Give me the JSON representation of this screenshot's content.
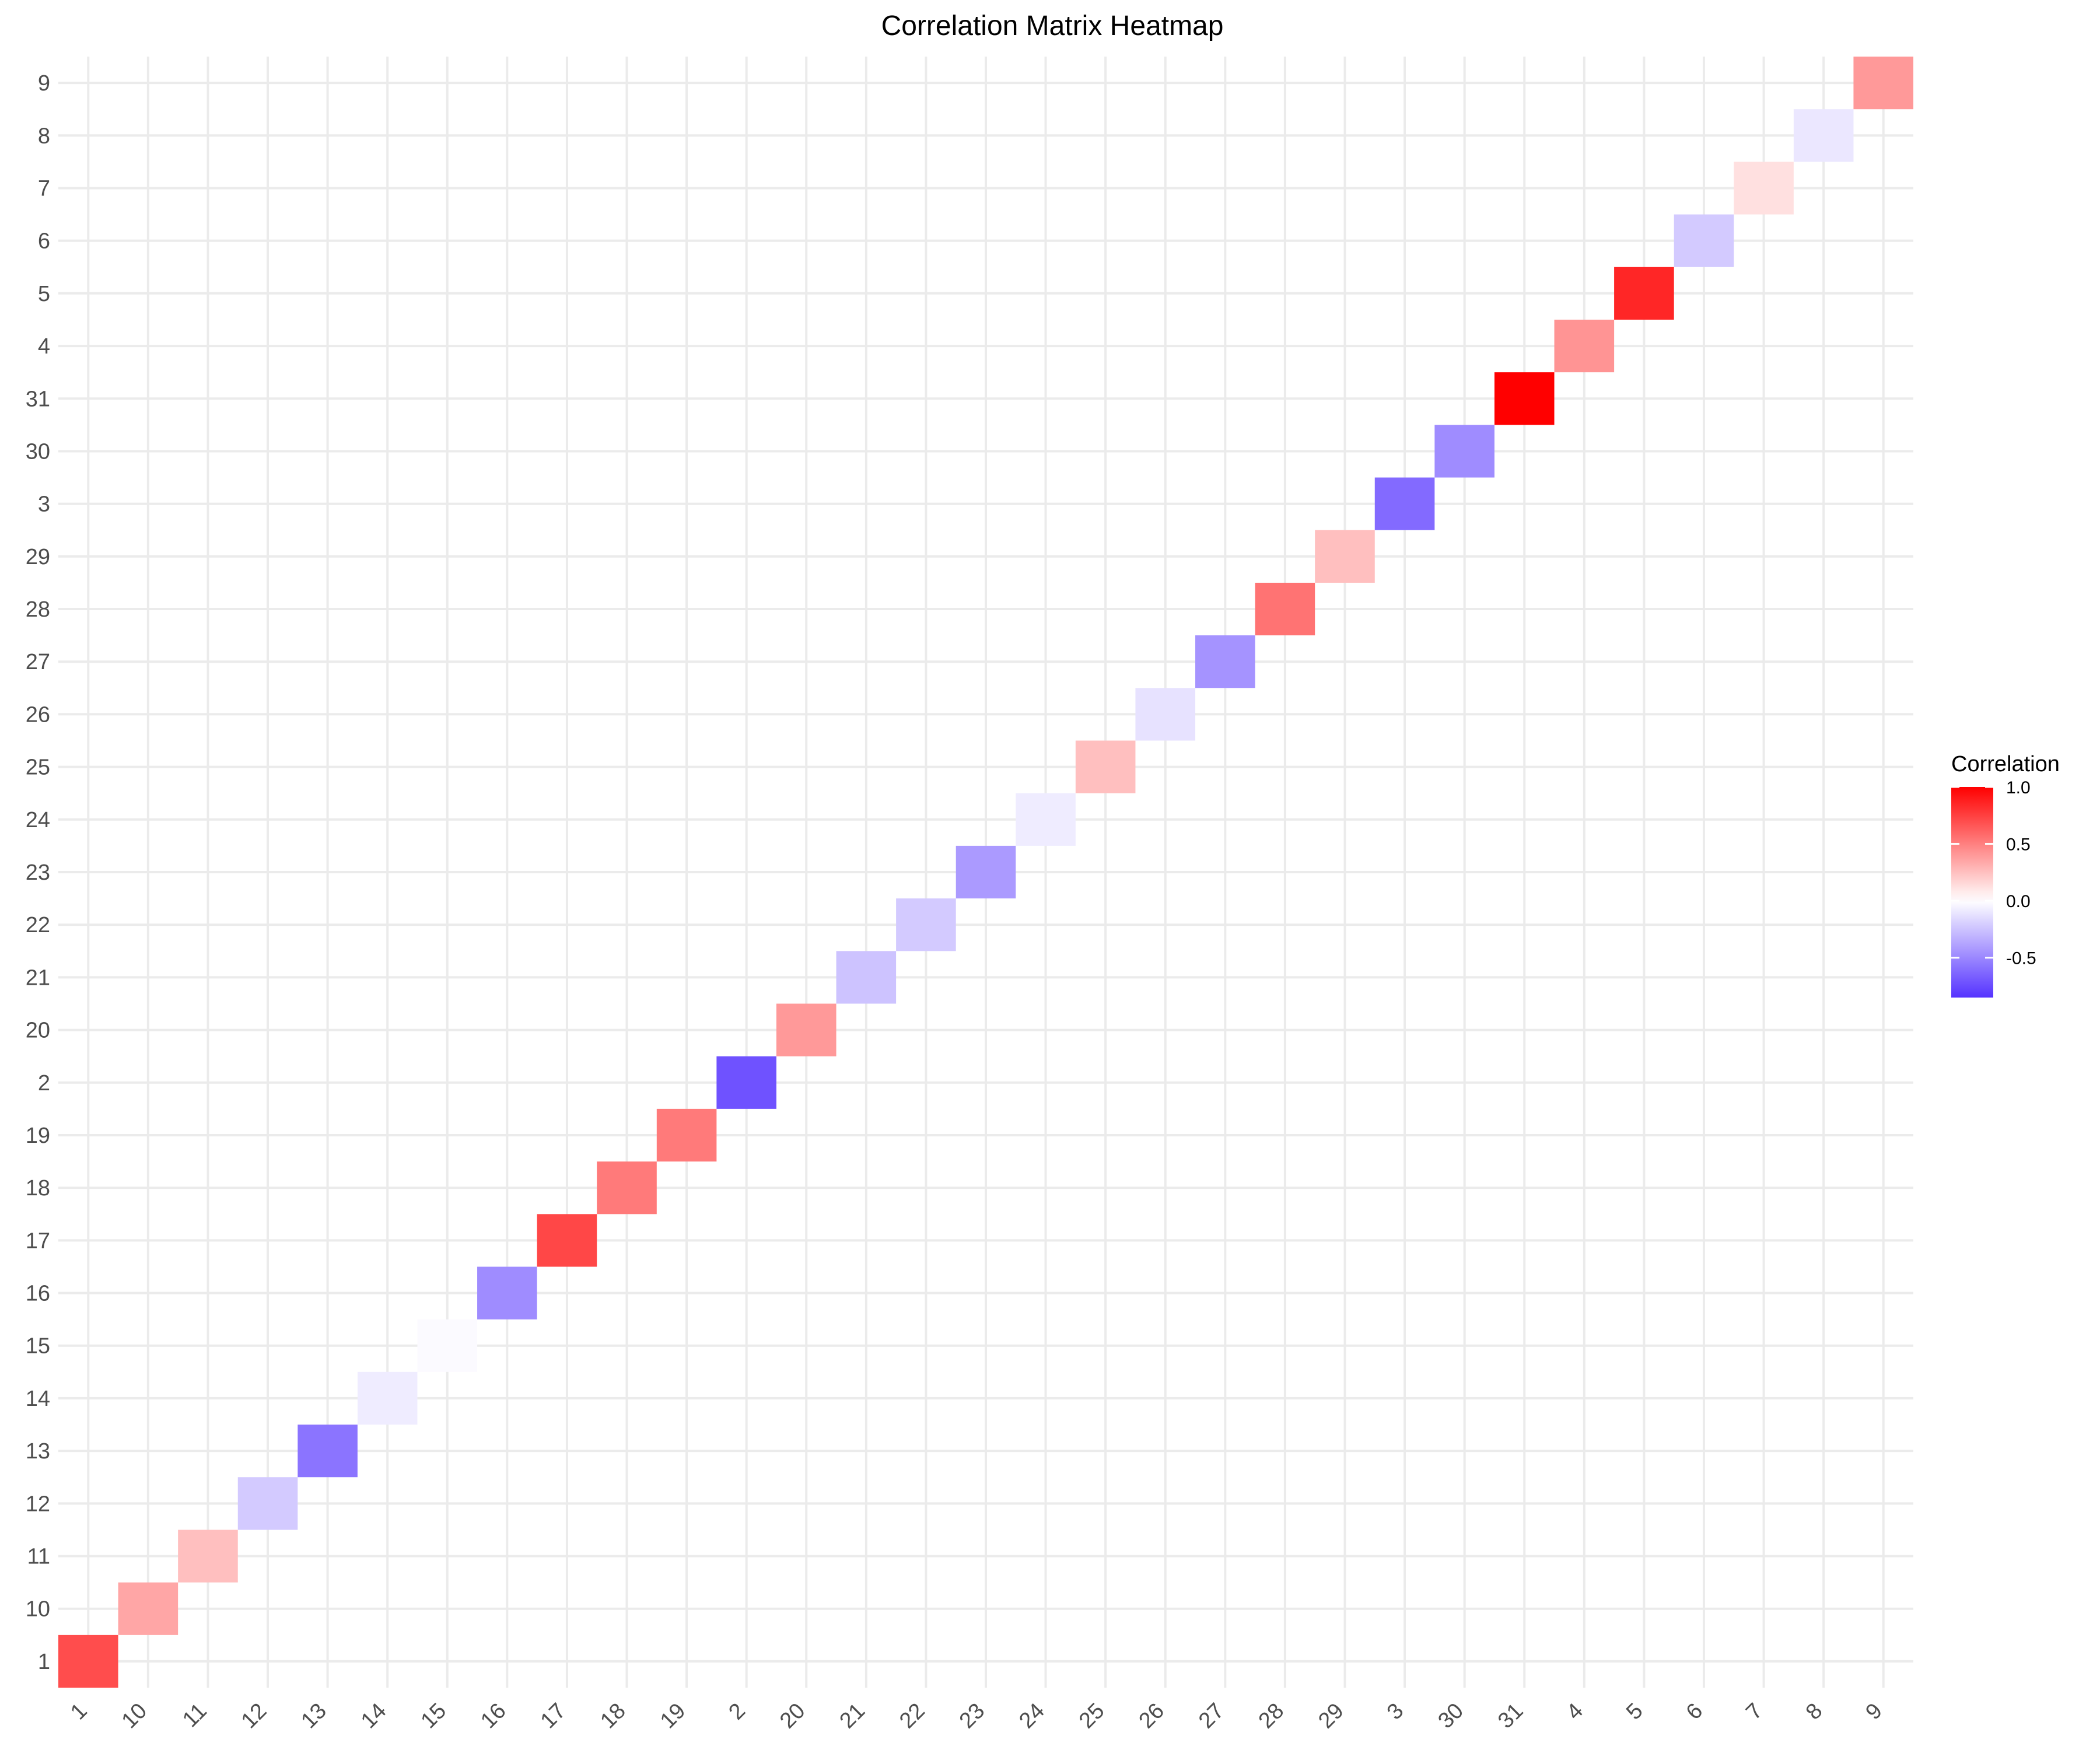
{
  "chart_data": {
    "type": "heatmap",
    "title": "Correlation Matrix Heatmap",
    "xlabel": "",
    "ylabel": "",
    "categories": [
      "1",
      "10",
      "11",
      "12",
      "13",
      "14",
      "15",
      "16",
      "17",
      "18",
      "19",
      "2",
      "20",
      "21",
      "22",
      "23",
      "24",
      "25",
      "26",
      "27",
      "28",
      "29",
      "3",
      "30",
      "31",
      "4",
      "5",
      "6",
      "7",
      "8",
      "9"
    ],
    "cells": [
      {
        "x": "1",
        "y": "1",
        "value": 0.7
      },
      {
        "x": "10",
        "y": "10",
        "value": 0.35
      },
      {
        "x": "11",
        "y": "11",
        "value": 0.25
      },
      {
        "x": "12",
        "y": "12",
        "value": -0.22
      },
      {
        "x": "13",
        "y": "13",
        "value": -0.58
      },
      {
        "x": "14",
        "y": "14",
        "value": -0.08
      },
      {
        "x": "15",
        "y": "15",
        "value": -0.02
      },
      {
        "x": "16",
        "y": "16",
        "value": -0.48
      },
      {
        "x": "17",
        "y": "17",
        "value": 0.72
      },
      {
        "x": "18",
        "y": "18",
        "value": 0.52
      },
      {
        "x": "19",
        "y": "19",
        "value": 0.52
      },
      {
        "x": "2",
        "y": "2",
        "value": -0.72
      },
      {
        "x": "20",
        "y": "20",
        "value": 0.4
      },
      {
        "x": "21",
        "y": "21",
        "value": -0.25
      },
      {
        "x": "22",
        "y": "22",
        "value": -0.22
      },
      {
        "x": "23",
        "y": "23",
        "value": -0.42
      },
      {
        "x": "24",
        "y": "24",
        "value": -0.08
      },
      {
        "x": "25",
        "y": "25",
        "value": 0.25
      },
      {
        "x": "26",
        "y": "26",
        "value": -0.12
      },
      {
        "x": "27",
        "y": "27",
        "value": -0.45
      },
      {
        "x": "28",
        "y": "28",
        "value": 0.55
      },
      {
        "x": "29",
        "y": "29",
        "value": 0.25
      },
      {
        "x": "3",
        "y": "3",
        "value": -0.62
      },
      {
        "x": "30",
        "y": "30",
        "value": -0.48
      },
      {
        "x": "31",
        "y": "31",
        "value": 1.0
      },
      {
        "x": "4",
        "y": "4",
        "value": 0.42
      },
      {
        "x": "5",
        "y": "5",
        "value": 0.85
      },
      {
        "x": "6",
        "y": "6",
        "value": -0.22
      },
      {
        "x": "7",
        "y": "7",
        "value": 0.12
      },
      {
        "x": "8",
        "y": "8",
        "value": -0.1
      },
      {
        "x": "9",
        "y": "9",
        "value": 0.4
      }
    ],
    "legend": {
      "title": "Correlation",
      "position": "right",
      "min": -0.85,
      "max": 1.0,
      "ticks": [
        1.0,
        0.5,
        0.0,
        -0.5
      ],
      "tick_labels": [
        "1.0",
        "0.5",
        "0.0",
        "-0.5"
      ]
    },
    "colors": {
      "low": "#5533ff",
      "mid": "#ffffff",
      "high": "#ff0000",
      "grid": "#ebebeb"
    },
    "grid": true
  }
}
